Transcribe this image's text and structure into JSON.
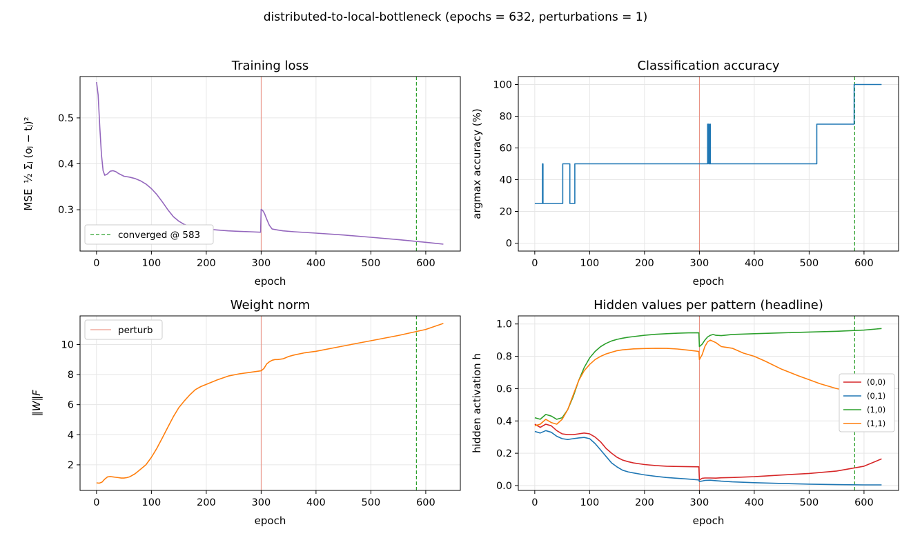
{
  "suptitle": "distributed-to-local-bottleneck  (epochs = 632, perturbations = 1)",
  "perturb_epoch": 300,
  "converged_epoch": 583,
  "colors": {
    "loss": "#9467bd",
    "accuracy": "#1f77b4",
    "weight": "#ff7f0e",
    "perturb": "#e8806f",
    "converged": "#2ca02c",
    "p00": "#d62728",
    "p01": "#1f77b4",
    "p10": "#2ca02c",
    "p11": "#ff7f0e"
  },
  "chart_data": [
    {
      "id": "loss",
      "type": "line",
      "title": "Training loss",
      "xlabel": "epoch",
      "ylabel_prefix": "MSE",
      "ylabel_formula": "½ Σⱼ (oⱼ − tⱼ)²",
      "xlim": [
        -30,
        663
      ],
      "ylim": [
        0.21,
        0.59
      ],
      "xticks": [
        0,
        100,
        200,
        300,
        400,
        500,
        600
      ],
      "yticks": [
        0.3,
        0.4,
        0.5
      ],
      "ytick_decimals": 1,
      "grid": true,
      "legend": {
        "position": "lower-left",
        "entries": [
          "converged @ 583"
        ]
      },
      "series": [
        {
          "color_key": "loss",
          "x": [
            0,
            3,
            6,
            9,
            12,
            15,
            20,
            25,
            30,
            35,
            40,
            50,
            60,
            70,
            80,
            90,
            100,
            110,
            120,
            130,
            140,
            150,
            160,
            170,
            180,
            190,
            200,
            220,
            240,
            260,
            280,
            299,
            300,
            303,
            306,
            310,
            315,
            320,
            330,
            340,
            360,
            400,
            450,
            500,
            550,
            600,
            632
          ],
          "y": [
            0.578,
            0.55,
            0.48,
            0.42,
            0.385,
            0.375,
            0.378,
            0.384,
            0.385,
            0.383,
            0.379,
            0.373,
            0.371,
            0.368,
            0.363,
            0.356,
            0.346,
            0.333,
            0.317,
            0.3,
            0.285,
            0.275,
            0.268,
            0.264,
            0.261,
            0.259,
            0.258,
            0.256,
            0.254,
            0.253,
            0.252,
            0.251,
            0.301,
            0.298,
            0.292,
            0.28,
            0.266,
            0.258,
            0.256,
            0.254,
            0.252,
            0.249,
            0.245,
            0.24,
            0.235,
            0.229,
            0.225
          ]
        }
      ]
    },
    {
      "id": "acc",
      "type": "line",
      "title": "Classification accuracy",
      "xlabel": "epoch",
      "ylabel": "argmax accuracy (%)",
      "xlim": [
        -30,
        663
      ],
      "ylim": [
        -5,
        105
      ],
      "xticks": [
        0,
        100,
        200,
        300,
        400,
        500,
        600
      ],
      "yticks": [
        0,
        20,
        40,
        60,
        80,
        100
      ],
      "ytick_decimals": 0,
      "grid": true,
      "series": [
        {
          "color_key": "accuracy",
          "x": [
            0,
            14,
            14,
            15,
            15,
            16,
            16,
            51,
            51,
            60,
            60,
            64,
            64,
            73,
            73,
            315,
            315,
            317,
            317,
            319,
            319,
            320,
            320,
            322,
            322,
            514,
            514,
            582,
            582,
            632
          ],
          "y": [
            25,
            25,
            50,
            50,
            25,
            25,
            25,
            25,
            50,
            50,
            50,
            50,
            25,
            25,
            50,
            50,
            75,
            75,
            50,
            50,
            75,
            75,
            50,
            50,
            50,
            50,
            75,
            75,
            100,
            100
          ]
        }
      ]
    },
    {
      "id": "weight",
      "type": "line",
      "title": "Weight norm",
      "xlabel": "epoch",
      "ylabel": "‖W‖F",
      "xlim": [
        -30,
        663
      ],
      "ylim": [
        0.3,
        11.9
      ],
      "xticks": [
        0,
        100,
        200,
        300,
        400,
        500,
        600
      ],
      "yticks": [
        2,
        4,
        6,
        8,
        10
      ],
      "ytick_decimals": 0,
      "grid": true,
      "legend": {
        "position": "top-left",
        "entries": [
          "perturb"
        ]
      },
      "series": [
        {
          "color_key": "weight",
          "x": [
            0,
            5,
            10,
            15,
            20,
            25,
            30,
            35,
            40,
            45,
            50,
            55,
            60,
            70,
            80,
            90,
            100,
            110,
            120,
            130,
            140,
            150,
            160,
            170,
            180,
            190,
            200,
            220,
            240,
            260,
            280,
            300,
            305,
            310,
            315,
            320,
            325,
            330,
            340,
            350,
            360,
            380,
            400,
            450,
            500,
            550,
            600,
            632
          ],
          "y": [
            0.8,
            0.78,
            0.85,
            1.05,
            1.2,
            1.22,
            1.2,
            1.17,
            1.15,
            1.12,
            1.12,
            1.15,
            1.2,
            1.4,
            1.7,
            2.0,
            2.5,
            3.1,
            3.8,
            4.5,
            5.2,
            5.8,
            6.25,
            6.65,
            7.0,
            7.2,
            7.35,
            7.65,
            7.9,
            8.05,
            8.15,
            8.25,
            8.4,
            8.7,
            8.85,
            8.95,
            9.0,
            9.0,
            9.05,
            9.2,
            9.3,
            9.45,
            9.55,
            9.9,
            10.25,
            10.6,
            11.0,
            11.4
          ]
        }
      ]
    },
    {
      "id": "hidden",
      "type": "line",
      "title": "Hidden values per pattern (headline)",
      "xlabel": "epoch",
      "ylabel": "hidden activation h",
      "xlim": [
        -30,
        663
      ],
      "ylim": [
        -0.03,
        1.05
      ],
      "xticks": [
        0,
        100,
        200,
        300,
        400,
        500,
        600
      ],
      "yticks": [
        0.0,
        0.2,
        0.4,
        0.6,
        0.8,
        1.0
      ],
      "ytick_decimals": 1,
      "grid": true,
      "legend": {
        "position": "center-right",
        "entries": [
          "(0,0)",
          "(0,1)",
          "(1,0)",
          "(1,1)"
        ]
      },
      "series": [
        {
          "name": "(0,0)",
          "color_key": "p00",
          "x": [
            0,
            10,
            20,
            30,
            40,
            50,
            60,
            70,
            80,
            90,
            100,
            110,
            120,
            130,
            140,
            150,
            160,
            170,
            180,
            200,
            220,
            240,
            260,
            280,
            299,
            300,
            305,
            310,
            320,
            330,
            340,
            360,
            400,
            450,
            500,
            550,
            600,
            632
          ],
          "y": [
            0.38,
            0.36,
            0.38,
            0.37,
            0.34,
            0.32,
            0.315,
            0.315,
            0.32,
            0.325,
            0.32,
            0.3,
            0.27,
            0.23,
            0.2,
            0.175,
            0.158,
            0.148,
            0.14,
            0.13,
            0.124,
            0.12,
            0.118,
            0.117,
            0.116,
            0.035,
            0.045,
            0.047,
            0.047,
            0.046,
            0.048,
            0.05,
            0.055,
            0.065,
            0.075,
            0.09,
            0.12,
            0.165
          ]
        },
        {
          "name": "(0,1)",
          "color_key": "p01",
          "x": [
            0,
            10,
            20,
            30,
            40,
            50,
            60,
            70,
            80,
            90,
            100,
            110,
            120,
            130,
            140,
            150,
            160,
            170,
            180,
            200,
            220,
            240,
            260,
            280,
            299,
            300,
            305,
            310,
            320,
            330,
            340,
            360,
            400,
            450,
            500,
            550,
            600,
            632
          ],
          "y": [
            0.335,
            0.325,
            0.34,
            0.33,
            0.305,
            0.29,
            0.285,
            0.29,
            0.295,
            0.298,
            0.29,
            0.26,
            0.22,
            0.18,
            0.14,
            0.115,
            0.095,
            0.085,
            0.078,
            0.066,
            0.057,
            0.05,
            0.045,
            0.04,
            0.035,
            0.025,
            0.028,
            0.032,
            0.033,
            0.03,
            0.027,
            0.023,
            0.018,
            0.013,
            0.009,
            0.006,
            0.004,
            0.004
          ]
        },
        {
          "name": "(1,0)",
          "color_key": "p10",
          "x": [
            0,
            10,
            20,
            30,
            40,
            50,
            60,
            70,
            80,
            90,
            100,
            110,
            120,
            130,
            140,
            150,
            160,
            170,
            180,
            200,
            220,
            240,
            260,
            280,
            299,
            300,
            305,
            310,
            315,
            320,
            325,
            330,
            340,
            360,
            400,
            450,
            500,
            550,
            600,
            632
          ],
          "y": [
            0.42,
            0.41,
            0.44,
            0.43,
            0.41,
            0.42,
            0.47,
            0.55,
            0.65,
            0.73,
            0.79,
            0.83,
            0.86,
            0.88,
            0.895,
            0.905,
            0.912,
            0.918,
            0.922,
            0.93,
            0.936,
            0.94,
            0.943,
            0.945,
            0.946,
            0.86,
            0.875,
            0.9,
            0.92,
            0.93,
            0.935,
            0.93,
            0.928,
            0.935,
            0.94,
            0.945,
            0.95,
            0.955,
            0.962,
            0.972
          ]
        },
        {
          "name": "(1,1)",
          "color_key": "p11",
          "x": [
            0,
            10,
            20,
            30,
            40,
            50,
            60,
            70,
            80,
            90,
            100,
            110,
            120,
            130,
            140,
            150,
            160,
            170,
            180,
            200,
            220,
            240,
            260,
            280,
            299,
            300,
            305,
            310,
            315,
            320,
            330,
            340,
            350,
            360,
            380,
            400,
            420,
            450,
            480,
            500,
            520,
            550,
            580,
            600,
            620,
            632
          ],
          "y": [
            0.37,
            0.38,
            0.41,
            0.39,
            0.38,
            0.41,
            0.47,
            0.56,
            0.65,
            0.71,
            0.75,
            0.78,
            0.8,
            0.815,
            0.825,
            0.835,
            0.84,
            0.843,
            0.846,
            0.848,
            0.85,
            0.849,
            0.845,
            0.838,
            0.83,
            0.78,
            0.81,
            0.86,
            0.89,
            0.9,
            0.885,
            0.86,
            0.855,
            0.85,
            0.82,
            0.8,
            0.77,
            0.72,
            0.68,
            0.655,
            0.63,
            0.6,
            0.58,
            0.57,
            0.56,
            0.555
          ]
        }
      ]
    }
  ]
}
